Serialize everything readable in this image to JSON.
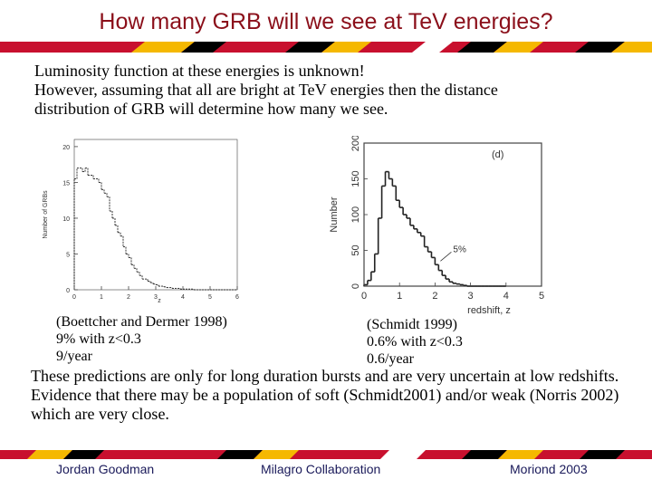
{
  "slide": {
    "title": "How many GRB will we see at TeV energies?",
    "intro": [
      "Luminosity function at these energies is unknown!",
      "However, assuming that all are bright at TeV energies then the distance",
      "distribution of GRB  will determine how many we see."
    ],
    "left_caption": [
      "(Boettcher and Dermer 1998)",
      "9% with z<0.3",
      "9/year"
    ],
    "right_caption": [
      "(Schmidt 1999)",
      "0.6% with z<0.3",
      "0.6/year"
    ],
    "body": [
      "These predictions are only for long duration bursts and are very uncertain at low redshifts.",
      "Evidence that there may be a population of soft (Schmidt2001) and/or weak (Norris 2002) which are very close."
    ],
    "footer": {
      "left": "Jordan Goodman",
      "center": "Milagro Collaboration",
      "right": "Moriond 2003"
    },
    "colors": {
      "title": "#8b0f1a",
      "stripe_red": "#c8102e",
      "stripe_gold": "#f5b800",
      "stripe_black": "#000000"
    }
  },
  "chart_data": [
    {
      "type": "bar",
      "style": "histogram",
      "title": "",
      "xlabel": "z",
      "ylabel": "Number of GRBs",
      "xlim": [
        0,
        6
      ],
      "ylim": [
        0,
        21
      ],
      "xticks": [
        0,
        1,
        2,
        3,
        4,
        5,
        6
      ],
      "yticks": [
        0,
        5,
        10,
        15,
        20
      ],
      "bin_width": 0.1,
      "x": [
        0.0,
        0.1,
        0.2,
        0.3,
        0.4,
        0.5,
        0.6,
        0.7,
        0.8,
        0.9,
        1.0,
        1.1,
        1.2,
        1.3,
        1.4,
        1.5,
        1.6,
        1.7,
        1.8,
        1.9,
        2.0,
        2.1,
        2.2,
        2.3,
        2.4,
        2.5,
        2.6,
        2.7,
        2.8,
        2.9,
        3.0,
        3.1,
        3.2,
        3.3,
        3.4,
        3.5,
        3.6,
        3.7,
        3.8,
        3.9,
        4.0,
        4.1,
        4.2,
        4.3,
        4.4,
        4.5,
        4.6,
        4.7,
        4.8,
        4.9,
        5.0,
        5.1,
        5.2,
        5.3,
        5.4,
        5.5,
        5.6,
        5.7,
        5.8,
        5.9
      ],
      "values": [
        15.5,
        17,
        17,
        16.5,
        17,
        16,
        16,
        15.5,
        15.5,
        15,
        14,
        13.5,
        13,
        11,
        10,
        9,
        8,
        7.5,
        6,
        5,
        4.5,
        3.5,
        3,
        2.5,
        2,
        1.5,
        1.5,
        1.2,
        1,
        0.8,
        0.7,
        0.5,
        0.5,
        0.4,
        0.3,
        0.3,
        0.2,
        0.2,
        0.2,
        0.1,
        0.1,
        0.1,
        0.1,
        0.1,
        0,
        0,
        0,
        0,
        0,
        0,
        0,
        0,
        0,
        0,
        0,
        0,
        0,
        0,
        0,
        0
      ]
    },
    {
      "type": "bar",
      "style": "histogram",
      "title": "(d)",
      "xlabel": "redshift, z",
      "ylabel": "Number",
      "xlim": [
        0,
        5
      ],
      "ylim": [
        0,
        200
      ],
      "xticks": [
        0,
        1,
        2,
        3,
        4,
        5
      ],
      "yticks": [
        0,
        50,
        100,
        150,
        200
      ],
      "bin_width": 0.1,
      "annotation": "5%",
      "x": [
        0.0,
        0.1,
        0.2,
        0.3,
        0.4,
        0.5,
        0.6,
        0.7,
        0.8,
        0.9,
        1.0,
        1.1,
        1.2,
        1.3,
        1.4,
        1.5,
        1.6,
        1.7,
        1.8,
        1.9,
        2.0,
        2.1,
        2.2,
        2.3,
        2.4,
        2.5,
        2.6,
        2.7,
        2.8,
        2.9,
        3.0,
        3.1,
        3.2,
        3.3,
        3.4,
        3.5,
        3.6,
        3.7,
        3.8,
        3.9
      ],
      "values": [
        2,
        8,
        20,
        45,
        95,
        140,
        160,
        150,
        140,
        120,
        110,
        100,
        95,
        85,
        80,
        75,
        70,
        55,
        48,
        40,
        30,
        22,
        15,
        10,
        6,
        4,
        3,
        2,
        1,
        0,
        0,
        0,
        0,
        0,
        0,
        0,
        0,
        0,
        0,
        0
      ]
    }
  ]
}
